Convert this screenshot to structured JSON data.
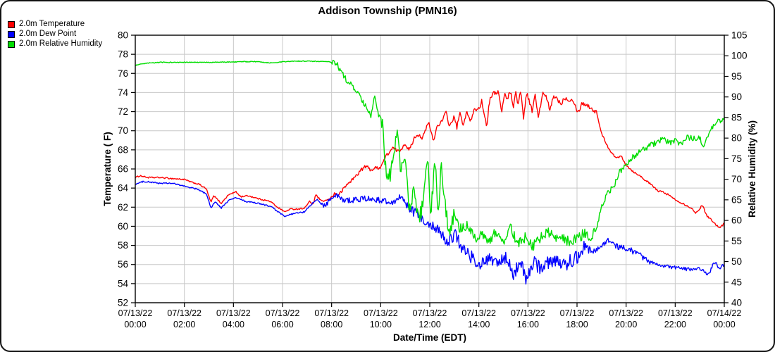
{
  "title": "Addison Township (PMN16)",
  "legend": [
    {
      "id": "temperature",
      "label": "2.0m Temperature",
      "color": "#ff0000"
    },
    {
      "id": "dew-point",
      "label": "2.0m Dew Point",
      "color": "#0000ff"
    },
    {
      "id": "relative-humidity",
      "label": "2.0m Relative Humidity",
      "color": "#00dd00"
    }
  ],
  "colors": {
    "grid": "#c8c8c8",
    "axis": "#000000",
    "background": "#ffffff",
    "temperature": "#ff0000",
    "dew_point": "#0000ff",
    "humidity": "#00dd00"
  },
  "chart_data": {
    "type": "line",
    "title": "Addison Township (PMN16)",
    "xlabel": "Date/Time (EDT)",
    "ylabel_left": "Temperature ( F)",
    "ylabel_right": "Relative Humidity (%)",
    "grid": true,
    "legend_position": "top-left",
    "x_range_hours": [
      0,
      24
    ],
    "x_tick_interval_hours": 2,
    "x_ticks": [
      {
        "date": "07/13/22",
        "time": "00:00"
      },
      {
        "date": "07/13/22",
        "time": "02:00"
      },
      {
        "date": "07/13/22",
        "time": "04:00"
      },
      {
        "date": "07/13/22",
        "time": "06:00"
      },
      {
        "date": "07/13/22",
        "time": "08:00"
      },
      {
        "date": "07/13/22",
        "time": "10:00"
      },
      {
        "date": "07/13/22",
        "time": "12:00"
      },
      {
        "date": "07/13/22",
        "time": "14:00"
      },
      {
        "date": "07/13/22",
        "time": "16:00"
      },
      {
        "date": "07/13/22",
        "time": "18:00"
      },
      {
        "date": "07/13/22",
        "time": "20:00"
      },
      {
        "date": "07/13/22",
        "time": "22:00"
      },
      {
        "date": "07/14/22",
        "time": "00:00"
      }
    ],
    "ylim_left": [
      52,
      80
    ],
    "ytick_step_left": 2,
    "y_ticks_left": [
      80,
      78,
      76,
      74,
      72,
      70,
      68,
      66,
      64,
      62,
      60,
      58,
      56,
      54,
      52
    ],
    "ylim_right": [
      40,
      105
    ],
    "ytick_step_right": 5,
    "y_ticks_right": [
      105,
      100,
      95,
      90,
      85,
      80,
      75,
      70,
      65,
      60,
      55,
      50,
      45,
      40
    ],
    "series": [
      {
        "id": "temperature-line",
        "name": "2.0m Temperature",
        "axis": "left",
        "units": "F",
        "color": "#ff0000",
        "points": [
          [
            0,
            65.1
          ],
          [
            0.2,
            65.3
          ],
          [
            0.5,
            65.1
          ],
          [
            1,
            65.1
          ],
          [
            1.5,
            65
          ],
          [
            2,
            64.9
          ],
          [
            2.3,
            64.6
          ],
          [
            2.6,
            64.4
          ],
          [
            2.9,
            63.9
          ],
          [
            3.08,
            62.5
          ],
          [
            3.2,
            63.2
          ],
          [
            3.5,
            62.4
          ],
          [
            3.8,
            63.3
          ],
          [
            4.1,
            63.6
          ],
          [
            4.3,
            63.1
          ],
          [
            4.6,
            63.2
          ],
          [
            5,
            62.9
          ],
          [
            5.5,
            62.6
          ],
          [
            5.8,
            62
          ],
          [
            6.1,
            61.5
          ],
          [
            6.3,
            61.8
          ],
          [
            6.6,
            61.8
          ],
          [
            6.9,
            61.9
          ],
          [
            7.1,
            62.6
          ],
          [
            7.25,
            62.3
          ],
          [
            7.35,
            63.3
          ],
          [
            7.6,
            62.6
          ],
          [
            7.9,
            62.8
          ],
          [
            8.1,
            63.4
          ],
          [
            8.3,
            63.3
          ],
          [
            8.6,
            64.3
          ],
          [
            8.85,
            64.9
          ],
          [
            9,
            65.3
          ],
          [
            9.2,
            65.9
          ],
          [
            9.4,
            66.3
          ],
          [
            9.6,
            65.9
          ],
          [
            9.8,
            66.1
          ],
          [
            10,
            66.2
          ],
          [
            10.2,
            67.3
          ],
          [
            10.5,
            68.2
          ],
          [
            10.75,
            67.8
          ],
          [
            11,
            68.7
          ],
          [
            11.15,
            67.9
          ],
          [
            11.4,
            69.4
          ],
          [
            11.55,
            69.6
          ],
          [
            11.7,
            69.2
          ],
          [
            11.95,
            70.9
          ],
          [
            12.15,
            68.9
          ],
          [
            12.3,
            70.5
          ],
          [
            12.5,
            71
          ],
          [
            12.67,
            72
          ],
          [
            12.8,
            70.4
          ],
          [
            13,
            71.5
          ],
          [
            13.1,
            70.3
          ],
          [
            13.25,
            72
          ],
          [
            13.35,
            70.3
          ],
          [
            13.5,
            72.1
          ],
          [
            13.65,
            70.9
          ],
          [
            13.82,
            72.2
          ],
          [
            14,
            72.3
          ],
          [
            14.12,
            73.1
          ],
          [
            14.32,
            70.5
          ],
          [
            14.45,
            73.5
          ],
          [
            14.6,
            73.9
          ],
          [
            14.8,
            74.1
          ],
          [
            14.93,
            71.8
          ],
          [
            15.05,
            74.1
          ],
          [
            15.13,
            73.2
          ],
          [
            15.3,
            74.2
          ],
          [
            15.4,
            72.4
          ],
          [
            15.5,
            74
          ],
          [
            15.6,
            72.8
          ],
          [
            15.7,
            74.2
          ],
          [
            15.82,
            71.4
          ],
          [
            15.95,
            74
          ],
          [
            16.17,
            72.1
          ],
          [
            16.3,
            73.8
          ],
          [
            16.42,
            71.3
          ],
          [
            16.6,
            73.9
          ],
          [
            16.75,
            73.5
          ],
          [
            16.9,
            72.1
          ],
          [
            17.05,
            73.7
          ],
          [
            17.2,
            73.3
          ],
          [
            17.35,
            72.8
          ],
          [
            17.5,
            73.5
          ],
          [
            17.65,
            73.2
          ],
          [
            17.8,
            73.4
          ],
          [
            18.05,
            71.9
          ],
          [
            18.2,
            72.9
          ],
          [
            18.4,
            72.7
          ],
          [
            18.6,
            72.3
          ],
          [
            18.8,
            71.9
          ],
          [
            19,
            69.7
          ],
          [
            19.3,
            68.1
          ],
          [
            19.6,
            67.1
          ],
          [
            19.8,
            67.4
          ],
          [
            20,
            66.4
          ],
          [
            20.3,
            65.7
          ],
          [
            20.5,
            65.4
          ],
          [
            20.8,
            64.8
          ],
          [
            21,
            64.4
          ],
          [
            21.3,
            63.7
          ],
          [
            21.6,
            63.5
          ],
          [
            22,
            62.8
          ],
          [
            22.3,
            62.4
          ],
          [
            22.6,
            62
          ],
          [
            22.85,
            61.4
          ],
          [
            23.1,
            62.2
          ],
          [
            23.3,
            61.1
          ],
          [
            23.55,
            60.5
          ],
          [
            23.8,
            59.8
          ],
          [
            24,
            60.3
          ]
        ],
        "noise_bands": [
          [
            0,
            8,
            0.07
          ],
          [
            8,
            13,
            0.18
          ],
          [
            13,
            18.8,
            0.22
          ],
          [
            18.8,
            24,
            0.1
          ]
        ]
      },
      {
        "id": "dew-point-line",
        "name": "2.0m Dew Point",
        "axis": "left",
        "units": "F",
        "color": "#0000ff",
        "points": [
          [
            0,
            64.4
          ],
          [
            0.35,
            64.7
          ],
          [
            1,
            64.5
          ],
          [
            1.5,
            64.5
          ],
          [
            2,
            64.2
          ],
          [
            2.5,
            63.9
          ],
          [
            2.9,
            63.4
          ],
          [
            3.08,
            61.9
          ],
          [
            3.25,
            62.6
          ],
          [
            3.5,
            61.9
          ],
          [
            3.8,
            62.7
          ],
          [
            4.1,
            63
          ],
          [
            4.5,
            62.6
          ],
          [
            5,
            62.4
          ],
          [
            5.5,
            62.1
          ],
          [
            6.1,
            61
          ],
          [
            6.4,
            61.3
          ],
          [
            6.9,
            61.5
          ],
          [
            7.1,
            62.1
          ],
          [
            7.4,
            62.8
          ],
          [
            7.7,
            62.2
          ],
          [
            8,
            62.9
          ],
          [
            8.2,
            63.2
          ],
          [
            8.5,
            62.7
          ],
          [
            9,
            62.8
          ],
          [
            9.5,
            62.9
          ],
          [
            10,
            62.7
          ],
          [
            10.5,
            62.5
          ],
          [
            10.85,
            63.2
          ],
          [
            11.1,
            61.9
          ],
          [
            11.5,
            61.2
          ],
          [
            12,
            60.2
          ],
          [
            12.4,
            59.6
          ],
          [
            12.7,
            58
          ],
          [
            13,
            59.3
          ],
          [
            13.3,
            57.8
          ],
          [
            13.6,
            57
          ],
          [
            13.9,
            56.3
          ],
          [
            14.2,
            56
          ],
          [
            14.5,
            56.5
          ],
          [
            14.8,
            56.2
          ],
          [
            15.1,
            56.6
          ],
          [
            15.4,
            55
          ],
          [
            15.7,
            56.3
          ],
          [
            15.95,
            54.3
          ],
          [
            16.2,
            56.2
          ],
          [
            16.5,
            55.6
          ],
          [
            16.8,
            56.2
          ],
          [
            17.1,
            56.6
          ],
          [
            17.4,
            55.8
          ],
          [
            17.7,
            56.3
          ],
          [
            18,
            56.8
          ],
          [
            18.35,
            58.3
          ],
          [
            18.6,
            57.3
          ],
          [
            19,
            57.9
          ],
          [
            19.35,
            58.6
          ],
          [
            19.6,
            57.9
          ],
          [
            20,
            57.7
          ],
          [
            20.4,
            57.3
          ],
          [
            20.8,
            56.5
          ],
          [
            21.2,
            56
          ],
          [
            21.6,
            55.8
          ],
          [
            22,
            55.7
          ],
          [
            22.5,
            55.5
          ],
          [
            23,
            55.6
          ],
          [
            23.35,
            54.9
          ],
          [
            23.6,
            56.3
          ],
          [
            23.8,
            55.6
          ],
          [
            24,
            56
          ]
        ],
        "noise_bands": [
          [
            0,
            7.5,
            0.07
          ],
          [
            7.5,
            11,
            0.3
          ],
          [
            11,
            12.5,
            0.5
          ],
          [
            12.5,
            18.5,
            0.75
          ],
          [
            18.5,
            21,
            0.35
          ],
          [
            21,
            24,
            0.18
          ]
        ]
      },
      {
        "id": "humidity-line",
        "name": "2.0m Relative Humidity",
        "axis": "right",
        "units": "%",
        "color": "#00dd00",
        "points": [
          [
            0,
            97.7
          ],
          [
            0.5,
            98.2
          ],
          [
            1,
            98.4
          ],
          [
            2,
            98.4
          ],
          [
            3,
            98.4
          ],
          [
            4,
            98.5
          ],
          [
            4.8,
            98.6
          ],
          [
            5.5,
            98.3
          ],
          [
            6,
            98.5
          ],
          [
            6.5,
            98.7
          ],
          [
            7,
            98.7
          ],
          [
            7.7,
            98.6
          ],
          [
            8.1,
            98.4
          ],
          [
            8.25,
            97.6
          ],
          [
            8.4,
            95.8
          ],
          [
            8.5,
            95
          ],
          [
            8.7,
            93.5
          ],
          [
            9,
            91.6
          ],
          [
            9.2,
            89.4
          ],
          [
            9.45,
            87
          ],
          [
            9.6,
            85.2
          ],
          [
            9.75,
            89.8
          ],
          [
            9.9,
            86
          ],
          [
            10.05,
            84.5
          ],
          [
            10.2,
            72.8
          ],
          [
            10.35,
            70.5
          ],
          [
            10.55,
            75
          ],
          [
            10.68,
            84.3
          ],
          [
            10.8,
            72
          ],
          [
            11,
            73.2
          ],
          [
            11.2,
            61.5
          ],
          [
            11.35,
            67.8
          ],
          [
            11.55,
            59.8
          ],
          [
            11.75,
            65
          ],
          [
            11.9,
            75.6
          ],
          [
            12.05,
            61
          ],
          [
            12.2,
            75.5
          ],
          [
            12.35,
            60.5
          ],
          [
            12.45,
            74.5
          ],
          [
            12.6,
            65.5
          ],
          [
            12.8,
            55.5
          ],
          [
            13,
            62.5
          ],
          [
            13.2,
            58
          ],
          [
            13.5,
            58.8
          ],
          [
            13.8,
            55.8
          ],
          [
            14.1,
            56.5
          ],
          [
            14.4,
            54.8
          ],
          [
            14.7,
            57.5
          ],
          [
            15,
            55.2
          ],
          [
            15.3,
            58
          ],
          [
            15.6,
            54.5
          ],
          [
            15.9,
            56
          ],
          [
            16.2,
            53.8
          ],
          [
            16.5,
            55.5
          ],
          [
            16.8,
            57.8
          ],
          [
            17.1,
            55
          ],
          [
            17.4,
            56.2
          ],
          [
            17.7,
            54.5
          ],
          [
            18,
            55.5
          ],
          [
            18.3,
            57
          ],
          [
            18.5,
            55.8
          ],
          [
            18.75,
            57.5
          ],
          [
            19,
            63
          ],
          [
            19.2,
            66
          ],
          [
            19.5,
            68.5
          ],
          [
            19.7,
            71.5
          ],
          [
            20,
            73.7
          ],
          [
            20.3,
            75.5
          ],
          [
            20.5,
            76.5
          ],
          [
            21,
            78.2
          ],
          [
            21.5,
            79.7
          ],
          [
            21.8,
            78.9
          ],
          [
            22,
            79.4
          ],
          [
            22.2,
            78.4
          ],
          [
            22.5,
            80.2
          ],
          [
            22.8,
            79.9
          ],
          [
            23,
            80.2
          ],
          [
            23.15,
            77.6
          ],
          [
            23.4,
            81.6
          ],
          [
            23.7,
            84.3
          ],
          [
            23.9,
            84
          ],
          [
            24,
            85
          ]
        ],
        "noise_bands": [
          [
            0,
            8,
            0.1
          ],
          [
            8,
            10,
            0.7
          ],
          [
            10,
            13,
            2.1
          ],
          [
            13,
            18.7,
            1.3
          ],
          [
            18.7,
            20,
            0.8
          ],
          [
            20,
            23,
            0.7
          ],
          [
            23,
            24,
            0.5
          ]
        ]
      }
    ]
  }
}
